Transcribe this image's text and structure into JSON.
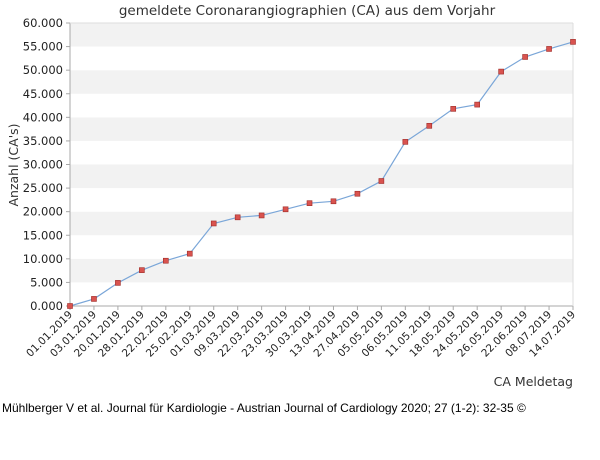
{
  "chart_data": {
    "type": "line",
    "title": "gemeldete Coronarangiographien (CA) aus dem Vorjahr",
    "xlabel": "CA Meldetag",
    "ylabel": "Anzahl (CA's)",
    "ylim": [
      0,
      60000
    ],
    "yticks": [
      "0.000",
      "5.000",
      "10.000",
      "15.000",
      "20.000",
      "25.000",
      "30.000",
      "35.000",
      "40.000",
      "45.000",
      "50.000",
      "55.000",
      "60.000"
    ],
    "grid": "alternating horizontal bands",
    "line_color": "#7aa6d8",
    "marker_color": "#d9534f",
    "categories": [
      "01.01.2019",
      "03.01.2019",
      "20.01.2019",
      "28.01.2019",
      "22.02.2019",
      "25.02.2019",
      "01.03.2019",
      "09.03.2019",
      "22.03.2019",
      "23.03.2019",
      "30.03.2019",
      "13.04.2019",
      "27.04.2019",
      "05.05.2019",
      "06.05.2019",
      "11.05.2019",
      "18.05.2019",
      "24.05.2019",
      "26.05.2019",
      "22.06.2019",
      "08.07.2019",
      "14.07.2019"
    ],
    "values": [
      0,
      1500,
      4900,
      7600,
      9600,
      11100,
      17500,
      18800,
      19200,
      20500,
      21800,
      22200,
      23800,
      26500,
      34800,
      38200,
      41800,
      42700,
      49700,
      52800,
      54500,
      56000
    ]
  },
  "citation": "Mühlberger V et al. Journal für Kardiologie - Austrian Journal of Cardiology 2020; 27 (1-2): 32-35 ©"
}
